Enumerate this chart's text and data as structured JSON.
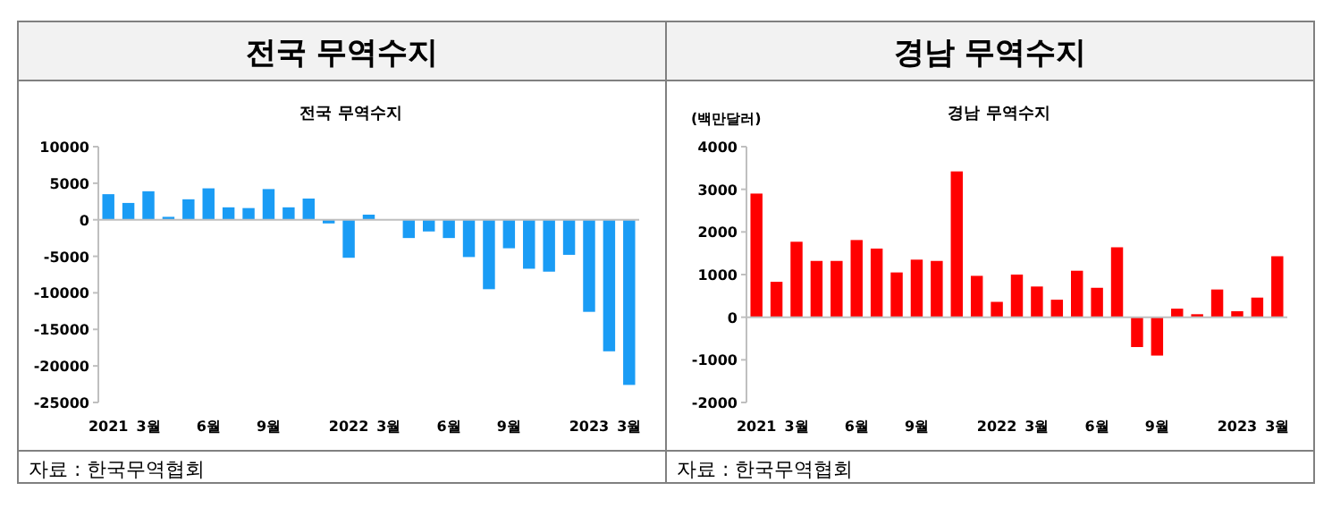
{
  "chart_data": [
    {
      "type": "bar",
      "title": "전국 무역수지",
      "subtitle": "전국 무역수지",
      "categories": [
        "2021",
        null,
        "3월",
        null,
        null,
        "6월",
        null,
        null,
        "9월",
        null,
        null,
        null,
        "2022",
        null,
        "3월",
        null,
        null,
        "6월",
        null,
        null,
        "9월",
        null,
        null,
        null,
        "2023",
        null,
        "3월"
      ],
      "values": [
        3500,
        2300,
        3900,
        400,
        2800,
        4300,
        1700,
        1600,
        4200,
        1700,
        2900,
        -500,
        -5200,
        700,
        0,
        -2500,
        -1600,
        -2500,
        -5100,
        -9500,
        -3900,
        -6700,
        -7100,
        -4800,
        -12600,
        -18000,
        -22600
      ],
      "color": "#1a9cf5",
      "ylim": [
        -25000,
        10000
      ],
      "yticks": [
        -25000,
        -20000,
        -15000,
        -10000,
        -5000,
        0,
        5000,
        10000
      ],
      "annotations": [
        "자료 : 한국무역협회"
      ]
    },
    {
      "type": "bar",
      "title": "경남 무역수지",
      "subtitle": "경남 무역수지",
      "ylabel": "(백만달러)",
      "categories": [
        "2021",
        null,
        "3월",
        null,
        null,
        "6월",
        null,
        null,
        "9월",
        null,
        null,
        null,
        "2022",
        null,
        "3월",
        null,
        null,
        "6월",
        null,
        null,
        "9월",
        null,
        null,
        null,
        "2023",
        null,
        "3월"
      ],
      "values": [
        2900,
        830,
        1770,
        1320,
        1320,
        1810,
        1610,
        1050,
        1350,
        1320,
        3420,
        970,
        360,
        1000,
        720,
        410,
        1090,
        690,
        1640,
        -700,
        -900,
        200,
        70,
        650,
        140,
        460,
        1430
      ],
      "color": "#ff0000",
      "ylim": [
        -2000,
        4000
      ],
      "yticks": [
        -2000,
        -1000,
        0,
        1000,
        2000,
        3000,
        4000
      ],
      "annotations": [
        "자료 : 한국무역협회"
      ]
    }
  ]
}
